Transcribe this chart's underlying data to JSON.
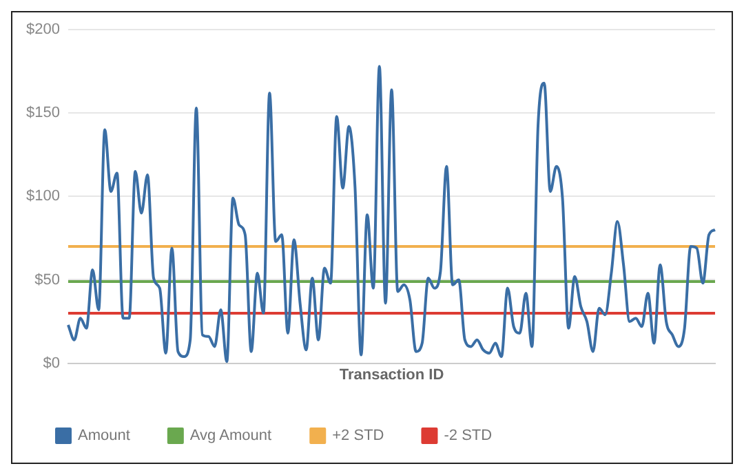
{
  "chart_data": {
    "type": "line",
    "xlabel": "Transaction ID",
    "categories": [
      null,
      null,
      null,
      null,
      null,
      null,
      null,
      null,
      null,
      null,
      null,
      null,
      null,
      null,
      null,
      null,
      null,
      null,
      null,
      null,
      null,
      null,
      null,
      null,
      null,
      null,
      null,
      null,
      null,
      null,
      null,
      null,
      null,
      null,
      null,
      null,
      null,
      null,
      null,
      null,
      null,
      null,
      null,
      null,
      null,
      null,
      null,
      null,
      null,
      null,
      null,
      null,
      null,
      null,
      null,
      null,
      null,
      null,
      null,
      null,
      null,
      null,
      null,
      null,
      null,
      null,
      null,
      null,
      null,
      null,
      null,
      null,
      null,
      null,
      null,
      null,
      null,
      null,
      null,
      null,
      null,
      null,
      null,
      null,
      null,
      null,
      null,
      null,
      null,
      null,
      null,
      null,
      null,
      null,
      null,
      null,
      null,
      null,
      null,
      null,
      null,
      null,
      null,
      null,
      null,
      null,
      null
    ],
    "series": [
      {
        "name": "Amount",
        "color": "#3a6ea5",
        "values": [
          23,
          14,
          27,
          21,
          56,
          32,
          140,
          103,
          114,
          27,
          27,
          115,
          90,
          113,
          51,
          45,
          6,
          69,
          7,
          4,
          14,
          153,
          17,
          16,
          10,
          32,
          1,
          99,
          83,
          77,
          7,
          54,
          30,
          162,
          73,
          77,
          18,
          74,
          36,
          8,
          51,
          14,
          57,
          48,
          148,
          105,
          142,
          106,
          5,
          89,
          45,
          178,
          36,
          164,
          43,
          47,
          38,
          7,
          12,
          51,
          45,
          55,
          118,
          47,
          50,
          14,
          10,
          14,
          8,
          6,
          12,
          4,
          45,
          22,
          18,
          42,
          10,
          143,
          168,
          103,
          118,
          99,
          21,
          52,
          34,
          25,
          7,
          33,
          29,
          54,
          85,
          59,
          25,
          27,
          22,
          42,
          12,
          59,
          25,
          17,
          10,
          21,
          70,
          69,
          48,
          77,
          80
        ]
      },
      {
        "name": "Avg Amount",
        "color": "#6aa84f",
        "values": [
          49,
          49,
          49,
          49,
          49,
          49,
          49,
          49,
          49,
          49,
          49,
          49,
          49,
          49,
          49,
          49,
          49,
          49,
          49,
          49,
          49,
          49,
          49,
          49,
          49,
          49,
          49,
          49,
          49,
          49,
          49,
          49,
          49,
          49,
          49,
          49,
          49,
          49,
          49,
          49,
          49,
          49,
          49,
          49,
          49,
          49,
          49,
          49,
          49,
          49,
          49,
          49,
          49,
          49,
          49,
          49,
          49,
          49,
          49,
          49,
          49,
          49,
          49,
          49,
          49,
          49,
          49,
          49,
          49,
          49,
          49,
          49,
          49,
          49,
          49,
          49,
          49,
          49,
          49,
          49,
          49,
          49,
          49,
          49,
          49,
          49,
          49,
          49,
          49,
          49,
          49,
          49,
          49,
          49,
          49,
          49,
          49,
          49,
          49,
          49,
          49,
          49,
          49,
          49,
          49,
          49,
          49
        ]
      },
      {
        "name": "+2 STD",
        "color": "#f2b04e",
        "values": [
          70,
          70,
          70,
          70,
          70,
          70,
          70,
          70,
          70,
          70,
          70,
          70,
          70,
          70,
          70,
          70,
          70,
          70,
          70,
          70,
          70,
          70,
          70,
          70,
          70,
          70,
          70,
          70,
          70,
          70,
          70,
          70,
          70,
          70,
          70,
          70,
          70,
          70,
          70,
          70,
          70,
          70,
          70,
          70,
          70,
          70,
          70,
          70,
          70,
          70,
          70,
          70,
          70,
          70,
          70,
          70,
          70,
          70,
          70,
          70,
          70,
          70,
          70,
          70,
          70,
          70,
          70,
          70,
          70,
          70,
          70,
          70,
          70,
          70,
          70,
          70,
          70,
          70,
          70,
          70,
          70,
          70,
          70,
          70,
          70,
          70,
          70,
          70,
          70,
          70,
          70,
          70,
          70,
          70,
          70,
          70,
          70,
          70,
          70,
          70,
          70,
          70,
          70,
          70,
          70,
          70,
          70
        ]
      },
      {
        "name": "-2 STD",
        "color": "#dd3b33",
        "values": [
          30,
          30,
          30,
          30,
          30,
          30,
          30,
          30,
          30,
          30,
          30,
          30,
          30,
          30,
          30,
          30,
          30,
          30,
          30,
          30,
          30,
          30,
          30,
          30,
          30,
          30,
          30,
          30,
          30,
          30,
          30,
          30,
          30,
          30,
          30,
          30,
          30,
          30,
          30,
          30,
          30,
          30,
          30,
          30,
          30,
          30,
          30,
          30,
          30,
          30,
          30,
          30,
          30,
          30,
          30,
          30,
          30,
          30,
          30,
          30,
          30,
          30,
          30,
          30,
          30,
          30,
          30,
          30,
          30,
          30,
          30,
          30,
          30,
          30,
          30,
          30,
          30,
          30,
          30,
          30,
          30,
          30,
          30,
          30,
          30,
          30,
          30,
          30,
          30,
          30,
          30,
          30,
          30,
          30,
          30,
          30,
          30,
          30,
          30,
          30,
          30,
          30,
          30,
          30,
          30,
          30,
          30
        ]
      }
    ],
    "ylim": [
      0,
      200
    ],
    "yticks": [
      {
        "value": 0,
        "label": "$0"
      },
      {
        "value": 50,
        "label": "$50"
      },
      {
        "value": 100,
        "label": "$100"
      },
      {
        "value": 150,
        "label": "$150"
      },
      {
        "value": 200,
        "label": "$200"
      }
    ],
    "grid": "y",
    "legend": "bottom",
    "tick_labels": "y",
    "marker": "none",
    "line_style": "solid"
  }
}
